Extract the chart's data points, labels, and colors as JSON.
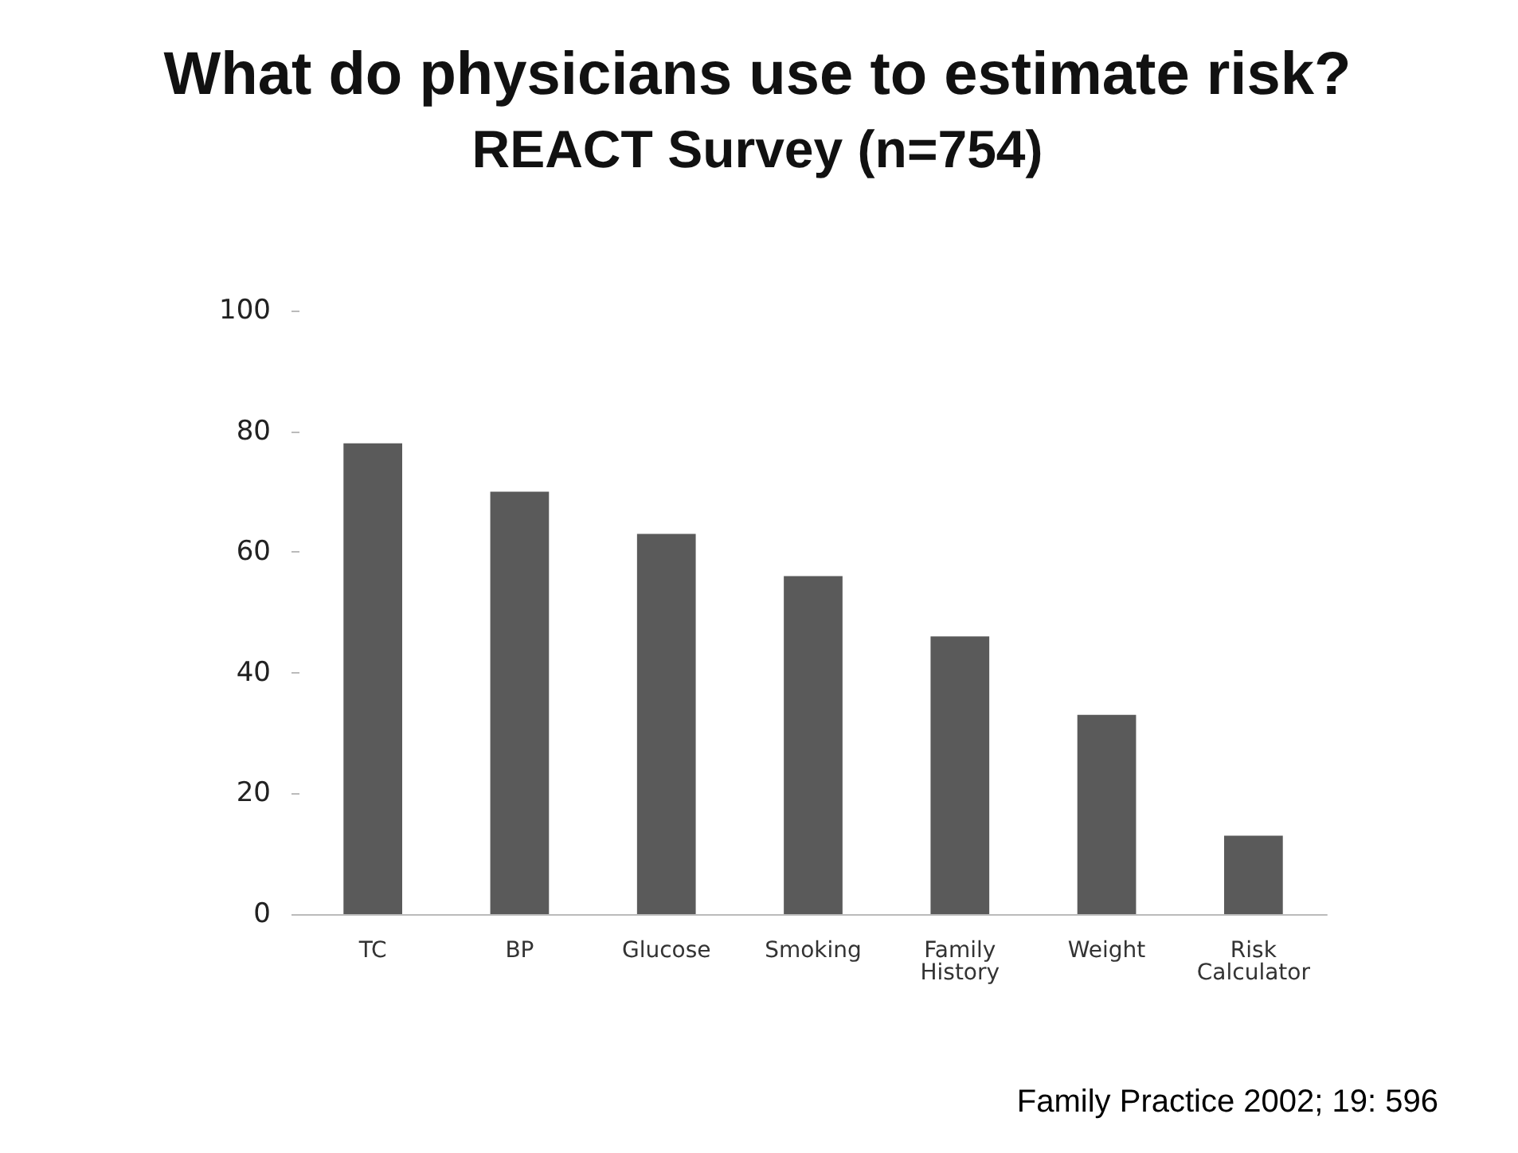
{
  "chart_data": {
    "type": "bar",
    "title": "What do physicians use to estimate risk?",
    "subtitle": "REACT Survey (n=754)",
    "categories": [
      "TC",
      "BP",
      "Glucose",
      "Smoking",
      "Family\nHistory",
      "Weight",
      "Risk\nCalculator"
    ],
    "values": [
      78,
      70,
      63,
      56,
      46,
      33,
      13
    ],
    "color": "#5a5a5a",
    "ylim": [
      0,
      100
    ],
    "yticks": [
      0,
      20,
      40,
      60,
      80,
      100
    ],
    "grid": false,
    "annotations": [
      "Family Practice 2002; 19: 596"
    ]
  }
}
